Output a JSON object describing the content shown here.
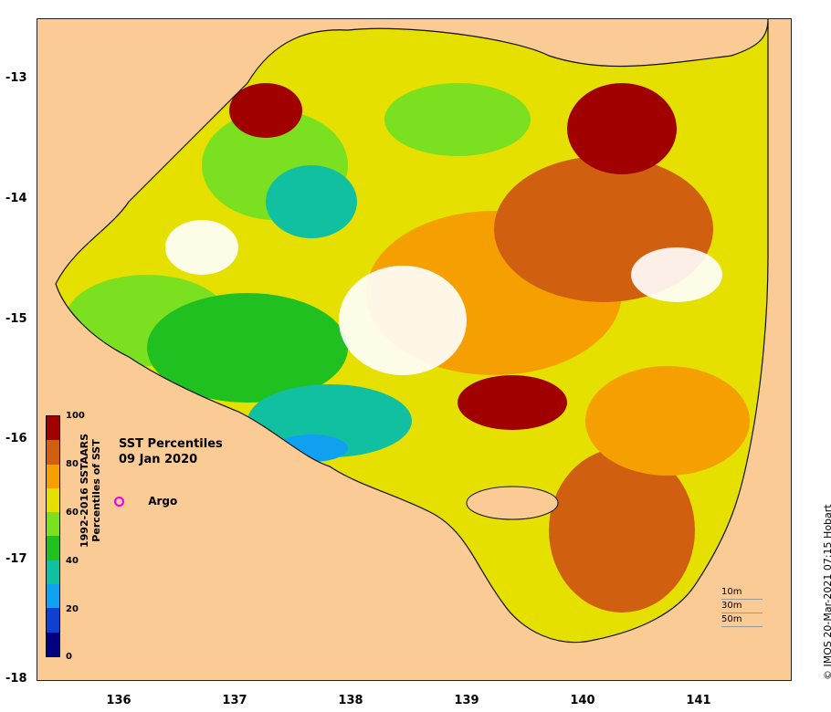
{
  "title": "SST Percentiles",
  "date": "09 Jan 2020",
  "argo_label": "Argo",
  "colorbar": {
    "caption_line1": "1992-2016 SSTAARS",
    "caption_line2": "Percentiles of SST",
    "ticks": [
      "100",
      "80",
      "60",
      "40",
      "20",
      "0"
    ],
    "colors": [
      "#a00000",
      "#d06010",
      "#f5a000",
      "#e5e000",
      "#7ae020",
      "#20c020",
      "#10c0a0",
      "#10a0f0",
      "#1040d0",
      "#000080"
    ]
  },
  "axes": {
    "y_ticks": [
      "-13",
      "-14",
      "-15",
      "-16",
      "-17",
      "-18"
    ],
    "x_ticks": [
      "136",
      "137",
      "138",
      "139",
      "140",
      "141"
    ]
  },
  "depth_legend": [
    "10m",
    "30m",
    "50m"
  ],
  "credit": "© IMOS 20-Mar-2021 07:15 Hobart",
  "colors": {
    "land": "#fbcb96",
    "no_data": "#ffffff",
    "argo": "#e600e6"
  }
}
